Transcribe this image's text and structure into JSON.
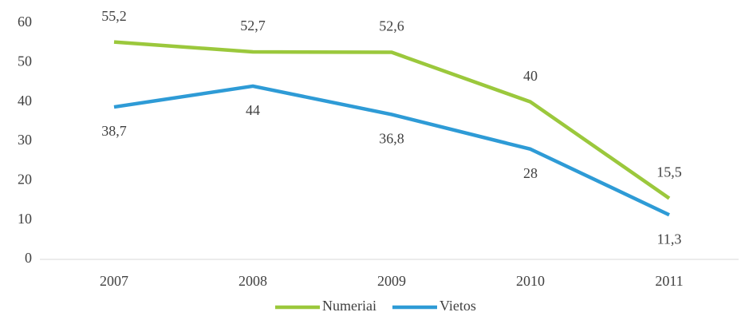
{
  "chart_data": {
    "type": "line",
    "categories": [
      "2007",
      "2008",
      "2009",
      "2010",
      "2011"
    ],
    "series": [
      {
        "name": "Numeriai",
        "color": "#9bc83c",
        "values": [
          55.2,
          52.7,
          52.6,
          40,
          15.5
        ],
        "value_labels": [
          "55,2",
          "52,7",
          "52,6",
          "40",
          "15,5"
        ]
      },
      {
        "name": "Vietos",
        "color": "#2e9bd6",
        "values": [
          38.7,
          44,
          36.8,
          28,
          11.3
        ],
        "value_labels": [
          "38,7",
          "44",
          "36,8",
          "28",
          "11,3"
        ]
      }
    ],
    "ylim": [
      0,
      60
    ],
    "yticks": [
      0,
      10,
      20,
      30,
      40,
      50,
      60
    ],
    "grid": false,
    "legend": "bottom"
  }
}
